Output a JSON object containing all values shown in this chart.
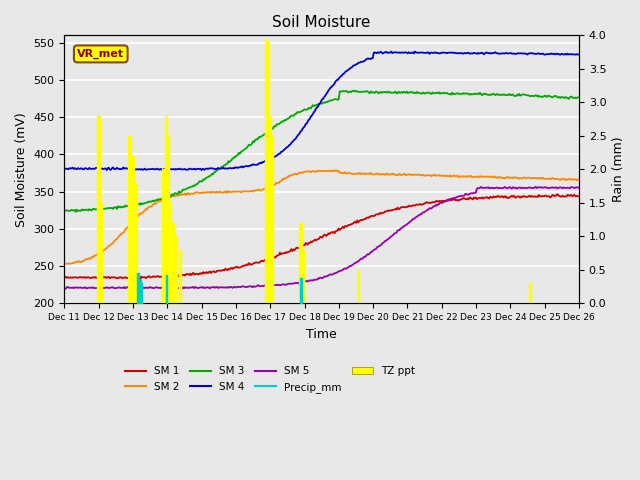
{
  "title": "Soil Moisture",
  "xlabel": "Time",
  "ylabel_left": "Soil Moisture (mV)",
  "ylabel_right": "Rain (mm)",
  "ylim_left": [
    200,
    560
  ],
  "ylim_right": [
    0.0,
    4.0
  ],
  "yticks_left": [
    200,
    250,
    300,
    350,
    400,
    450,
    500,
    550
  ],
  "yticks_right": [
    0.0,
    0.5,
    1.0,
    1.5,
    2.0,
    2.5,
    3.0,
    3.5,
    4.0
  ],
  "xlim": [
    0,
    15
  ],
  "xtick_labels": [
    "Dec 11",
    "Dec 12",
    "Dec 13",
    "Dec 14",
    "Dec 15",
    "Dec 16",
    "Dec 17",
    "Dec 18",
    "Dec 19",
    "Dec 20",
    "Dec 21",
    "Dec 22",
    "Dec 23",
    "Dec 24",
    "Dec 25",
    "Dec 26"
  ],
  "background_color": "#e8e8e8",
  "plot_bg_color": "#e8e8e8",
  "grid_color": "#ffffff",
  "sm1_color": "#cc0000",
  "sm2_color": "#ff8800",
  "sm3_color": "#00aa00",
  "sm4_color": "#0000cc",
  "sm5_color": "#9900aa",
  "precip_color": "#00cccc",
  "tz_color": "#ffff00",
  "label_box_color": "#ffff00",
  "label_box_edge": "#8b4513",
  "label_text_color": "#8b0000",
  "sm1_label": "SM 1",
  "sm2_label": "SM 2",
  "sm3_label": "SM 3",
  "sm4_label": "SM 4",
  "sm5_label": "SM 5",
  "precip_label": "Precip_mm",
  "tz_label": "TZ ppt",
  "site_label": "VR_met"
}
